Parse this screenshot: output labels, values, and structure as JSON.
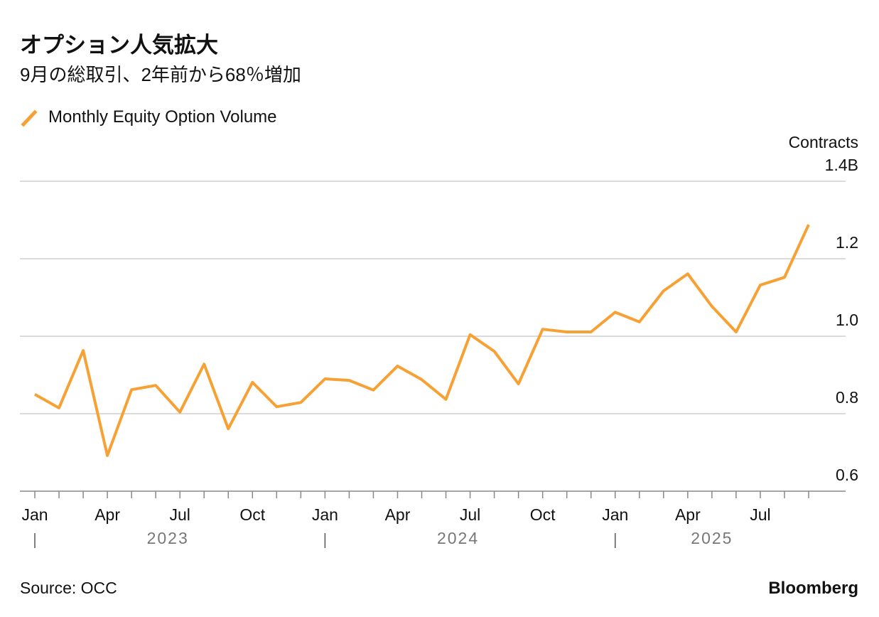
{
  "chart_data": {
    "type": "line",
    "title": "オプション人気拡大",
    "subtitle": "9月の総取引、2年前から68％増加",
    "y_axis_label": "Contracts",
    "source": "Source: OCC",
    "brand": "Bloomberg",
    "categories": [
      "Jan",
      null,
      null,
      "Apr",
      null,
      null,
      "Jul",
      null,
      null,
      "Oct",
      null,
      null,
      "Jan",
      null,
      null,
      "Apr",
      null,
      null,
      "Jul",
      null,
      null,
      "Oct",
      null,
      null,
      "Jan",
      null,
      null,
      "Apr",
      null,
      null,
      "Jul",
      null,
      null
    ],
    "years": [
      "2023",
      "2024",
      "2025"
    ],
    "series": [
      {
        "name": "Monthly Equity Option Volume",
        "color": "#f7a134",
        "values": [
          0.85,
          0.815,
          0.963,
          0.692,
          0.862,
          0.873,
          0.804,
          0.928,
          0.761,
          0.881,
          0.818,
          0.829,
          0.89,
          0.886,
          0.861,
          0.923,
          0.888,
          0.837,
          1.004,
          0.961,
          0.877,
          1.018,
          1.011,
          1.011,
          1.062,
          1.037,
          1.117,
          1.161,
          1.077,
          1.011,
          1.132,
          1.152,
          1.288
        ]
      }
    ],
    "ylim": [
      0.6,
      1.4
    ],
    "yticks": [
      0.6,
      0.8,
      {
        "value": 1,
        "label": "1.0"
      },
      1.2,
      {
        "value": 1.4,
        "label": "1.4B"
      }
    ],
    "grid": true
  }
}
